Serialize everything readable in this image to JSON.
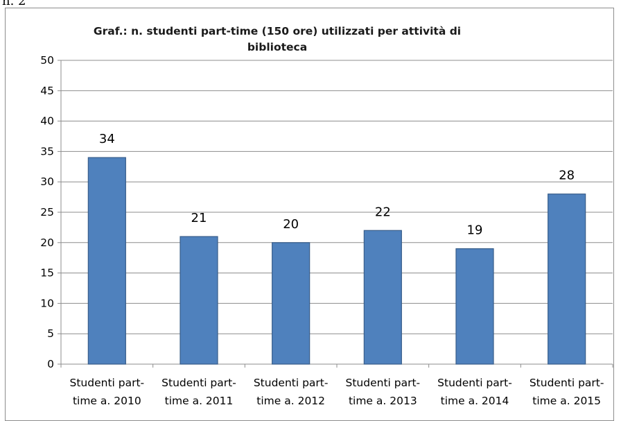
{
  "page": {
    "label": "n. 2"
  },
  "chart_data": {
    "type": "bar",
    "title_lines": [
      "Graf.: n. studenti part-time (150 ore) utilizzati per attività di",
      "biblioteca"
    ],
    "categories": [
      [
        "Studenti part-",
        "time a. 2010"
      ],
      [
        "Studenti part-",
        "time a. 2011"
      ],
      [
        "Studenti part-",
        "time a. 2012"
      ],
      [
        "Studenti part-",
        "time a. 2013"
      ],
      [
        "Studenti part-",
        "time a. 2014"
      ],
      [
        "Studenti part-",
        "time a. 2015"
      ]
    ],
    "values": [
      34,
      21,
      20,
      22,
      19,
      28
    ],
    "yticks": [
      0,
      5,
      10,
      15,
      20,
      25,
      30,
      35,
      40,
      45,
      50
    ],
    "ylim": [
      0,
      50
    ],
    "grid": true,
    "legend": "none",
    "colors": {
      "bar_fill": "#4f81bd",
      "bar_stroke": "#385d8a",
      "grid": "#8c8c8c",
      "axis": "#8c8c8c"
    }
  }
}
